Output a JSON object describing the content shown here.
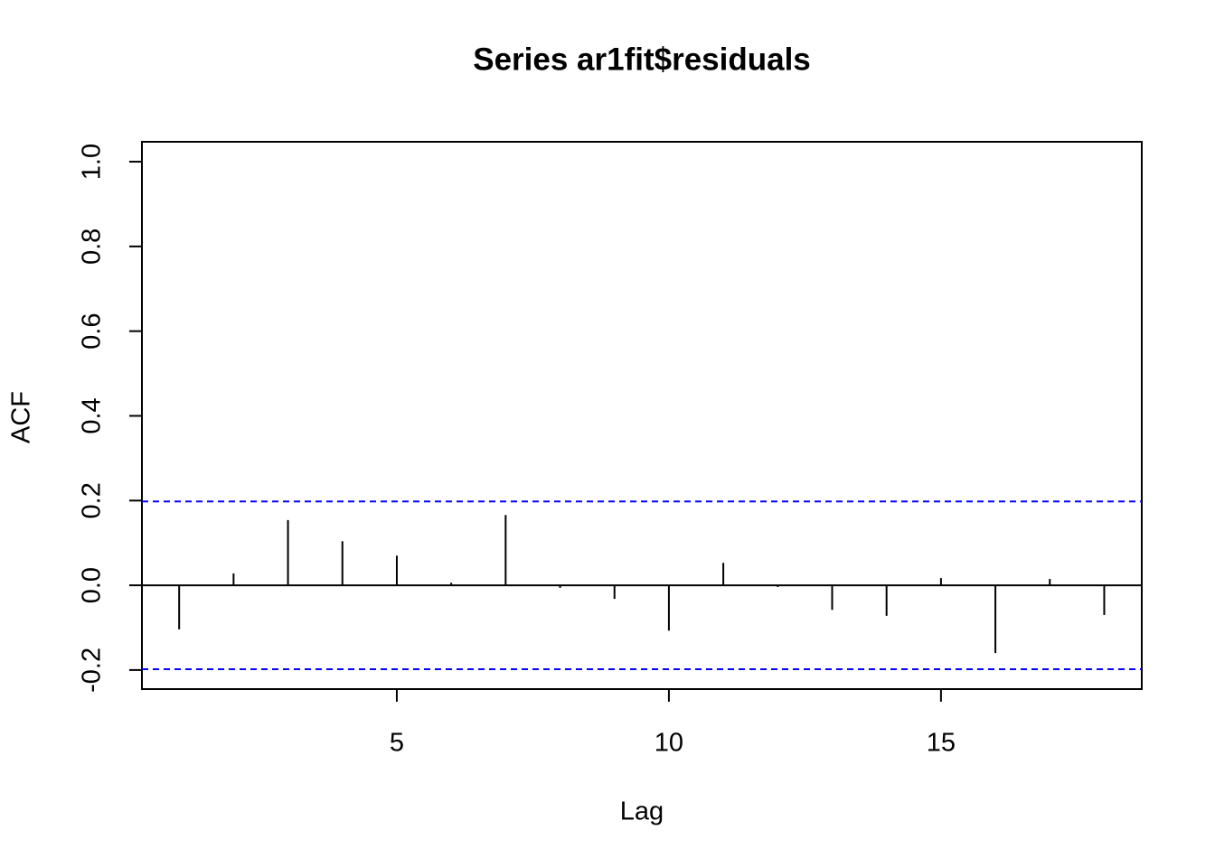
{
  "chart_data": {
    "type": "stem",
    "title": "Series  ar1fit$residuals",
    "x_label": "Lag",
    "y_label": "ACF",
    "x": [
      1,
      2,
      3,
      4,
      5,
      6,
      7,
      8,
      9,
      10,
      11,
      12,
      13,
      14,
      15,
      16,
      17,
      18
    ],
    "values": [
      -0.104,
      0.028,
      0.154,
      0.104,
      0.07,
      0.006,
      0.166,
      -0.006,
      -0.032,
      -0.107,
      0.053,
      -0.004,
      -0.058,
      -0.072,
      0.017,
      -0.16,
      0.015,
      -0.07
    ],
    "color": "#000000",
    "xlim": [
      0.316,
      18.69
    ],
    "xticks": [
      5,
      10,
      15
    ],
    "ylim": [
      -0.245,
      1.047
    ],
    "yticks": [
      -0.2,
      {
        "value": 0,
        "label": "0.0"
      },
      0.2,
      0.4,
      0.6,
      0.8,
      {
        "value": 1,
        "label": "1.0"
      }
    ],
    "hlines": [
      {
        "value": 0.198,
        "color": "#0000ff"
      },
      {
        "value": -0.198,
        "color": "#0000ff"
      }
    ]
  }
}
